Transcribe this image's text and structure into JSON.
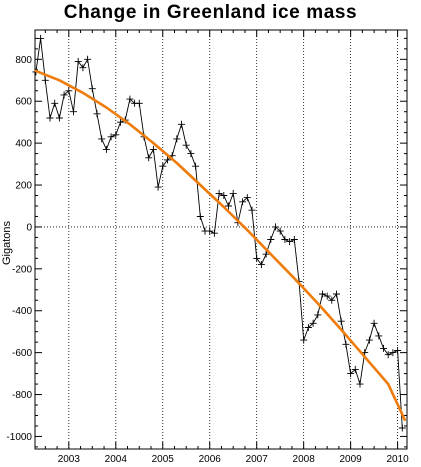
{
  "chart_data": {
    "type": "line",
    "title": "Change in Greenland ice mass",
    "xlabel": "",
    "ylabel": "Gigatons",
    "xlim": [
      2002.28,
      2010.2
    ],
    "ylim": [
      -1060,
      940
    ],
    "x_ticks": [
      2003,
      2004,
      2005,
      2006,
      2007,
      2008,
      2009,
      2010
    ],
    "x_tick_labels": [
      "2003",
      "2004",
      "2005",
      "2006",
      "2007",
      "2008",
      "2009",
      "2010"
    ],
    "y_ticks": [
      800,
      600,
      400,
      200,
      0,
      -200,
      -400,
      -600,
      -800,
      -1000
    ],
    "y_tick_labels": [
      "800",
      "600",
      "400",
      "200",
      "0",
      "-200",
      "-400",
      "-600",
      "-800",
      "-1000"
    ],
    "grid": {
      "x": true,
      "y": false,
      "style": "dotted"
    },
    "zero_line": true,
    "series": [
      {
        "role": "monthly",
        "color": "#000000",
        "marker": "plus",
        "x": [
          2002.3,
          2002.4,
          2002.5,
          2002.6,
          2002.7,
          2002.8,
          2002.9,
          2003.0,
          2003.1,
          2003.2,
          2003.3,
          2003.4,
          2003.5,
          2003.6,
          2003.7,
          2003.8,
          2003.9,
          2004.0,
          2004.1,
          2004.2,
          2004.3,
          2004.4,
          2004.5,
          2004.6,
          2004.7,
          2004.8,
          2004.9,
          2005.0,
          2005.1,
          2005.2,
          2005.3,
          2005.4,
          2005.5,
          2005.6,
          2005.7,
          2005.8,
          2005.9,
          2006.0,
          2006.1,
          2006.2,
          2006.3,
          2006.4,
          2006.5,
          2006.6,
          2006.7,
          2006.8,
          2006.9,
          2007.0,
          2007.1,
          2007.2,
          2007.3,
          2007.4,
          2007.5,
          2007.6,
          2007.7,
          2007.8,
          2007.9,
          2008.0,
          2008.1,
          2008.2,
          2008.3,
          2008.4,
          2008.5,
          2008.6,
          2008.7,
          2008.8,
          2008.9,
          2009.0,
          2009.1,
          2009.2,
          2009.3,
          2009.4,
          2009.5,
          2009.6,
          2009.7,
          2009.8,
          2009.9,
          2010.0,
          2010.1
        ],
        "values": [
          740,
          900,
          700,
          520,
          590,
          520,
          630,
          650,
          550,
          790,
          760,
          800,
          660,
          540,
          420,
          370,
          430,
          440,
          500,
          510,
          610,
          590,
          590,
          430,
          330,
          370,
          190,
          290,
          320,
          340,
          420,
          490,
          390,
          350,
          290,
          50,
          -20,
          -20,
          -30,
          160,
          150,
          100,
          160,
          20,
          120,
          140,
          80,
          -150,
          -180,
          -130,
          -60,
          0,
          -20,
          -60,
          -70,
          -60,
          -260,
          -540,
          -480,
          -460,
          -420,
          -320,
          -330,
          -350,
          -320,
          -450,
          -560,
          -700,
          -680,
          -750,
          -600,
          -540,
          -460,
          -520,
          -580,
          -610,
          -600,
          -590,
          -960
        ]
      },
      {
        "role": "trend",
        "color": "#ee7b0a",
        "marker": "none",
        "x": [
          2002.3,
          2002.8,
          2003.3,
          2003.8,
          2004.3,
          2004.8,
          2005.3,
          2005.8,
          2006.3,
          2006.8,
          2007.3,
          2007.8,
          2008.3,
          2008.8,
          2009.3,
          2009.8,
          2010.15
        ],
        "values": [
          745,
          700,
          640,
          570,
          490,
          400,
          305,
          200,
          95,
          -15,
          -130,
          -245,
          -365,
          -490,
          -620,
          -750,
          -920
        ]
      }
    ]
  }
}
